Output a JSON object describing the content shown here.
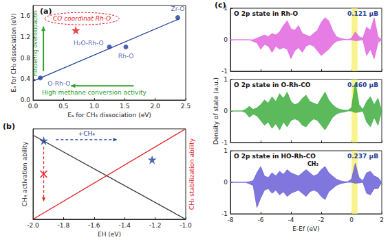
{
  "chart_data": [
    {
      "type": "scatter",
      "panel": "(a)",
      "x_label": "Eₐ for CH₄ dissociation (eV)",
      "y_label": "Eₐ for CH₃ dissociation (eV)",
      "xlim": [
        0,
        2.5
      ],
      "xticks": [
        {
          "value": 0,
          "label": "0.0"
        },
        0.5,
        {
          "value": 1,
          "label": "1.0"
        },
        1.5,
        {
          "value": 2,
          "label": "2.0"
        },
        2.5
      ],
      "ylim": [
        0,
        1.8
      ],
      "yticks": [
        {
          "value": 0,
          "label": "0.0"
        },
        0.4,
        0.8,
        1.2,
        1.6
      ],
      "series": [
        {
          "type": "scatter",
          "marker": "circle",
          "color": "#1f3f99",
          "labels": [
            "O-Rh-O",
            "H₂O-Rh-O",
            "Rh-O",
            "Zr-O"
          ],
          "x": [
            0.12,
            1.25,
            1.52,
            2.37
          ],
          "values": [
            0.42,
            1.01,
            1.01,
            1.57
          ]
        },
        {
          "type": "line",
          "color": "#1f3f99",
          "x": [
            0,
            2.4
          ],
          "values": [
            0.36,
            1.55
          ]
        },
        {
          "type": "scatter",
          "marker": "star",
          "color": "#e41a1c",
          "x": [
            0.7
          ],
          "values": [
            1.33
          ]
        }
      ],
      "annotations": [
        {
          "text": "CO coordinat Rh-O",
          "color": "#e41a1c"
        },
        {
          "text": "Hindering overoxidation",
          "color": "#2ca02c"
        },
        {
          "text": "High methane conversion activity",
          "color": "#2ca02c"
        }
      ]
    },
    {
      "type": "line",
      "panel": "(b)",
      "x_label": "EH (eV)",
      "y_label": "CH₄ activation ability",
      "y2_label": "CH₃ stabilization ability",
      "xlim": [
        -2,
        -1
      ],
      "xticks": [
        {
          "value": -2,
          "label": "-2.0"
        },
        -1.8,
        -1.6,
        -1.4,
        -1.2,
        {
          "value": -1,
          "label": "-1.0"
        }
      ],
      "ylim": [
        0,
        1
      ],
      "tick_labels": "x",
      "series": [
        {
          "type": "line",
          "color": "#333333",
          "x": [
            -2,
            -1
          ],
          "values": [
            0.93,
            0
          ]
        },
        {
          "type": "line",
          "color": "#e41a1c",
          "x": [
            -2,
            -1
          ],
          "values": [
            0,
            1
          ]
        },
        {
          "type": "scatter",
          "marker": "star",
          "color": "#1f3f99",
          "x": [
            -1.93,
            -1.22
          ],
          "values": [
            0.87,
            0.66
          ]
        }
      ],
      "annotations": [
        {
          "text": "+CH₄",
          "color": "#1f3f99"
        }
      ]
    },
    {
      "type": "area",
      "panel": "(c)",
      "title": "O 2p state in Rh-O",
      "xlim": [
        -8,
        2
      ],
      "xticks": [
        -8,
        -6,
        -4,
        -2,
        0,
        2
      ],
      "ylim": [
        -1,
        1
      ],
      "yticks": [
        -1,
        0,
        1
      ],
      "tick_labels": "y",
      "band": [
        0,
        0.4
      ],
      "band_color": "#f5ef6a",
      "x": [
        -8,
        -7.75,
        -7.5,
        -7.25,
        -7,
        -6.75,
        -6.5,
        -6.25,
        -6,
        -5.75,
        -5.5,
        -5.25,
        -5,
        -4.75,
        -4.5,
        -4.25,
        -4,
        -3.75,
        -3.5,
        -3.25,
        -3,
        -2.75,
        -2.5,
        -2.25,
        -2,
        -1.75,
        -1.5,
        -1.25,
        -1,
        -0.75,
        -0.5,
        -0.25,
        0,
        0.25,
        0.5,
        0.75,
        1,
        1.25,
        1.5,
        1.75,
        2
      ],
      "series": [
        {
          "color": "#e066e0",
          "values": [
            0,
            0,
            0,
            0,
            0,
            0,
            0,
            0.05,
            0.1,
            0.15,
            0.1,
            0.2,
            0.15,
            0.25,
            0.45,
            0.6,
            0.35,
            0.3,
            0.45,
            0.2,
            0.15,
            0.1,
            0.2,
            0.3,
            0.55,
            0.7,
            0.6,
            0.3,
            0.1,
            0.05,
            0.02,
            0,
            0.05,
            0.25,
            0.1,
            0.05,
            0.4,
            0.3,
            0.7,
            0.1,
            0
          ]
        },
        {
          "color": "#e066e0",
          "values": [
            0,
            0,
            0,
            0,
            0,
            0,
            -0.05,
            -0.1,
            -0.3,
            -0.15,
            -0.2,
            -0.4,
            -0.2,
            -0.3,
            -0.25,
            -0.3,
            -0.6,
            -0.35,
            -0.25,
            -0.4,
            -0.2,
            -0.15,
            -0.2,
            -0.35,
            -0.5,
            -0.4,
            -0.3,
            -0.15,
            -0.05,
            -0.02,
            0,
            0,
            0,
            -0.03,
            -0.02,
            0,
            -0.5,
            -0.3,
            -0.6,
            -0.1,
            0
          ]
        }
      ],
      "annotations": [
        {
          "text": "0.121 μB",
          "color": "#1f3f99"
        }
      ]
    },
    {
      "type": "area",
      "title": "O 2p state in O-Rh-CO",
      "y_label": "Density of state (a.u.)",
      "xlim": [
        -8,
        2
      ],
      "xticks": [
        -8,
        -6,
        -4,
        -2,
        0,
        2
      ],
      "ylim": [
        -1,
        1
      ],
      "yticks": [
        -1,
        0,
        1
      ],
      "tick_labels": "y",
      "band": [
        0,
        0.4
      ],
      "band_color": "#f5ef6a",
      "x": [
        -8,
        -7.75,
        -7.5,
        -7.25,
        -7,
        -6.75,
        -6.5,
        -6.25,
        -6,
        -5.75,
        -5.5,
        -5.25,
        -5,
        -4.75,
        -4.5,
        -4.25,
        -4,
        -3.75,
        -3.5,
        -3.25,
        -3,
        -2.75,
        -2.5,
        -2.25,
        -2,
        -1.75,
        -1.5,
        -1.25,
        -1,
        -0.75,
        -0.5,
        -0.25,
        0,
        0.25,
        0.5,
        0.75,
        1,
        1.25,
        1.5,
        1.75,
        2
      ],
      "series": [
        {
          "color": "#3fae3f",
          "values": [
            0,
            0,
            0,
            0,
            0.05,
            0.15,
            0.05,
            0.1,
            0.2,
            0.35,
            0.25,
            0.45,
            0.3,
            0.55,
            0.4,
            0.6,
            0.3,
            0.2,
            0.25,
            0.4,
            0.5,
            0.3,
            0.25,
            0.2,
            0.4,
            0.6,
            0.35,
            0.2,
            0.1,
            0.05,
            0.03,
            0.02,
            0.1,
            0.9,
            0.2,
            0.05,
            0.3,
            0.45,
            0.2,
            0.4,
            0
          ]
        },
        {
          "color": "#3fae3f",
          "values": [
            0,
            0,
            0,
            0,
            -0.05,
            -0.2,
            -0.1,
            -0.15,
            -0.3,
            -0.45,
            -0.35,
            -0.55,
            -0.4,
            -0.6,
            -0.35,
            -0.5,
            -0.3,
            -0.25,
            -0.3,
            -0.45,
            -0.5,
            -0.35,
            -0.25,
            -0.3,
            -0.45,
            -0.6,
            -0.4,
            -0.2,
            -0.1,
            -0.05,
            -0.03,
            0,
            0,
            -0.05,
            -0.03,
            0,
            -0.35,
            -0.5,
            -0.2,
            -0.45,
            0
          ]
        }
      ],
      "annotations": [
        {
          "text": "0.460 μB",
          "color": "#1f3f99"
        }
      ]
    },
    {
      "type": "area",
      "title": "O 2p state in HO-Rh-CO",
      "subtitle": "CH₃",
      "x_label": "E-Ef (eV)",
      "xlim": [
        -8,
        2
      ],
      "xticks": [
        -8,
        -6,
        -4,
        -2,
        0,
        2
      ],
      "ylim": [
        -1,
        1
      ],
      "yticks": [
        -1,
        0,
        1
      ],
      "band": [
        0,
        0.4
      ],
      "band_color": "#f5ef6a",
      "x": [
        -8,
        -7.75,
        -7.5,
        -7.25,
        -7,
        -6.75,
        -6.5,
        -6.25,
        -6,
        -5.75,
        -5.5,
        -5.25,
        -5,
        -4.75,
        -4.5,
        -4.25,
        -4,
        -3.75,
        -3.5,
        -3.25,
        -3,
        -2.75,
        -2.5,
        -2.25,
        -2,
        -1.75,
        -1.5,
        -1.25,
        -1,
        -0.75,
        -0.5,
        -0.25,
        0,
        0.25,
        0.5,
        0.75,
        1,
        1.25,
        1.5,
        1.75,
        2
      ],
      "series": [
        {
          "color": "#6a5fd8",
          "values": [
            0,
            0,
            0,
            0,
            0,
            0.02,
            0.05,
            0.3,
            0.5,
            0.2,
            0.15,
            0.3,
            0.2,
            0.35,
            0.25,
            0.4,
            0.3,
            0.25,
            0.2,
            0.3,
            0.4,
            0.3,
            0.2,
            0.25,
            0.4,
            0.5,
            0.3,
            0.2,
            0.1,
            0.05,
            0.02,
            0.02,
            0.1,
            0.6,
            0.15,
            0.05,
            0.3,
            0.35,
            0.2,
            0.15,
            0
          ]
        },
        {
          "color": "#6a5fd8",
          "values": [
            0,
            0,
            0,
            0,
            0,
            -0.05,
            -0.1,
            -0.8,
            -0.5,
            -0.25,
            -0.2,
            -0.35,
            -0.25,
            -0.4,
            -0.3,
            -0.45,
            -0.35,
            -0.3,
            -0.25,
            -0.35,
            -0.45,
            -0.3,
            -0.25,
            -0.3,
            -0.45,
            -0.55,
            -0.3,
            -0.2,
            -0.1,
            -0.05,
            -0.02,
            0,
            0,
            -0.03,
            -0.02,
            0,
            -0.35,
            -0.4,
            -0.2,
            -0.2,
            0
          ]
        }
      ],
      "annotations": [
        {
          "text": "0.237 μB",
          "color": "#1f3f99"
        }
      ]
    }
  ]
}
